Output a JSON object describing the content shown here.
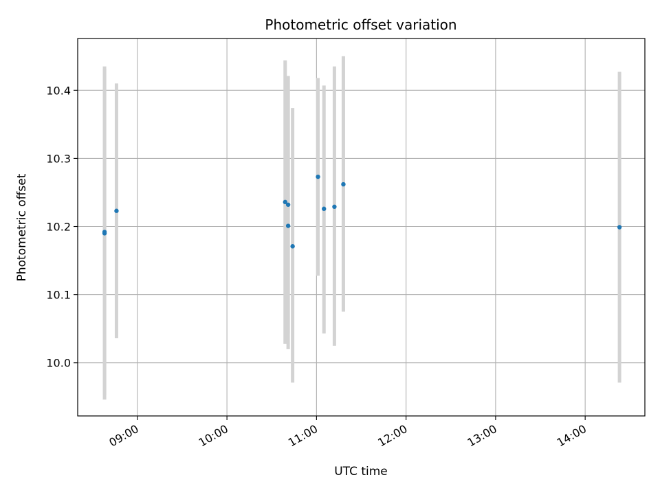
{
  "chart_data": {
    "type": "scatter",
    "title": "Photometric offset variation",
    "xlabel": "UTC time",
    "ylabel": "Photometric offset",
    "x_ticks": [
      "09:00",
      "10:00",
      "11:00",
      "12:00",
      "13:00",
      "14:00"
    ],
    "y_ticks": [
      "10.0",
      "10.1",
      "10.2",
      "10.3",
      "10.4"
    ],
    "xlim": [
      "08:20",
      "14:40"
    ],
    "ylim": [
      9.922,
      10.476
    ],
    "grid": true,
    "points": [
      {
        "x": "08:38",
        "y": 10.192,
        "yerr_low": 9.953,
        "yerr_high": 10.431
      },
      {
        "x": "08:38",
        "y": 10.19,
        "yerr_low": 9.946,
        "yerr_high": 10.435
      },
      {
        "x": "08:46",
        "y": 10.223,
        "yerr_low": 10.036,
        "yerr_high": 10.41
      },
      {
        "x": "10:39",
        "y": 10.236,
        "yerr_low": 10.028,
        "yerr_high": 10.444
      },
      {
        "x": "10:41",
        "y": 10.201,
        "yerr_low": 10.02,
        "yerr_high": 10.42
      },
      {
        "x": "10:41",
        "y": 10.232,
        "yerr_low": 10.043,
        "yerr_high": 10.421
      },
      {
        "x": "10:44",
        "y": 10.171,
        "yerr_low": 9.971,
        "yerr_high": 10.374
      },
      {
        "x": "11:01",
        "y": 10.273,
        "yerr_low": 10.128,
        "yerr_high": 10.418
      },
      {
        "x": "11:05",
        "y": 10.226,
        "yerr_low": 10.043,
        "yerr_high": 10.407
      },
      {
        "x": "11:12",
        "y": 10.229,
        "yerr_low": 10.025,
        "yerr_high": 10.435
      },
      {
        "x": "11:18",
        "y": 10.262,
        "yerr_low": 10.075,
        "yerr_high": 10.45
      },
      {
        "x": "14:23",
        "y": 10.199,
        "yerr_low": 9.971,
        "yerr_high": 10.427
      }
    ],
    "colors": {
      "point": "#1f77b4",
      "errorbar": "#d3d3d3",
      "grid": "#b0b0b0",
      "axes": "#000000"
    }
  }
}
